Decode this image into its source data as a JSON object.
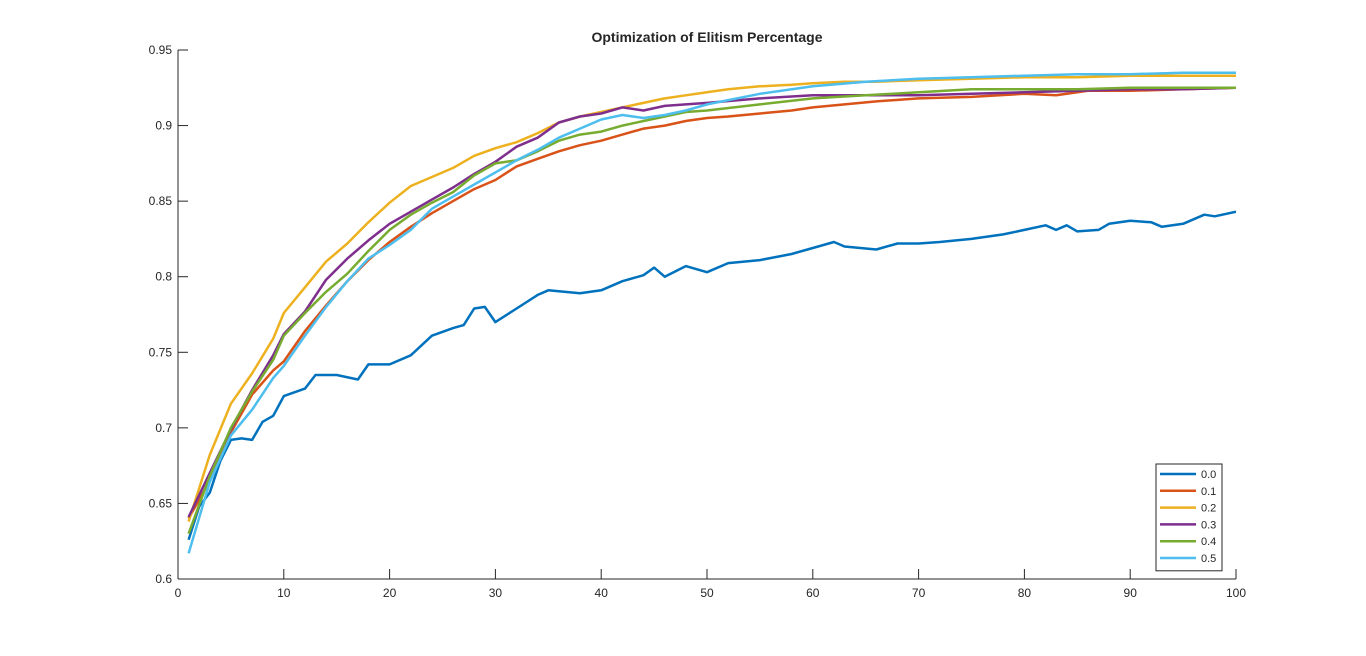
{
  "chart_data": {
    "type": "line",
    "title": "Optimization of Elitism Percentage",
    "xlabel": "",
    "ylabel": "",
    "xlim": [
      0,
      100
    ],
    "ylim": [
      0.6,
      0.95
    ],
    "xticks": [
      0,
      10,
      20,
      30,
      40,
      50,
      60,
      70,
      80,
      90,
      100
    ],
    "xtick_labels": [
      "0",
      "10",
      "20",
      "30",
      "40",
      "50",
      "60",
      "70",
      "80",
      "90",
      "100"
    ],
    "yticks": [
      0.6,
      0.65,
      0.7,
      0.75,
      0.8,
      0.85,
      0.9,
      0.95
    ],
    "ytick_labels": [
      "0.6",
      "0.65",
      "0.7",
      "0.75",
      "0.8",
      "0.85",
      "0.9",
      "0.95"
    ],
    "grid": false,
    "legend_position": "bottom-right",
    "series": [
      {
        "name": "0.0",
        "color": "#0072BD",
        "x": [
          1,
          2,
          3,
          4,
          5,
          6,
          7,
          8,
          9,
          10,
          12,
          13,
          15,
          17,
          18,
          20,
          22,
          24,
          26,
          27,
          28,
          29,
          30,
          32,
          34,
          35,
          38,
          40,
          42,
          44,
          45,
          46,
          48,
          50,
          52,
          55,
          58,
          60,
          62,
          63,
          66,
          68,
          70,
          72,
          75,
          78,
          80,
          82,
          83,
          84,
          85,
          87,
          88,
          90,
          92,
          93,
          95,
          97,
          98,
          100
        ],
        "y": [
          0.626,
          0.648,
          0.657,
          0.678,
          0.692,
          0.693,
          0.692,
          0.704,
          0.708,
          0.721,
          0.726,
          0.735,
          0.735,
          0.732,
          0.742,
          0.742,
          0.748,
          0.761,
          0.766,
          0.768,
          0.779,
          0.78,
          0.77,
          0.779,
          0.788,
          0.791,
          0.789,
          0.791,
          0.797,
          0.801,
          0.806,
          0.8,
          0.807,
          0.803,
          0.809,
          0.811,
          0.815,
          0.819,
          0.823,
          0.82,
          0.818,
          0.822,
          0.822,
          0.823,
          0.825,
          0.828,
          0.831,
          0.834,
          0.831,
          0.834,
          0.83,
          0.831,
          0.835,
          0.837,
          0.836,
          0.833,
          0.835,
          0.841,
          0.84,
          0.843
        ]
      },
      {
        "name": "0.1",
        "color": "#D95319",
        "x": [
          1,
          3,
          5,
          7,
          9,
          10,
          12,
          14,
          16,
          18,
          20,
          22,
          24,
          26,
          28,
          30,
          32,
          34,
          36,
          38,
          40,
          42,
          44,
          46,
          48,
          50,
          52,
          55,
          58,
          60,
          63,
          66,
          70,
          75,
          80,
          83,
          86,
          90,
          95,
          100
        ],
        "y": [
          0.64,
          0.665,
          0.697,
          0.722,
          0.738,
          0.744,
          0.764,
          0.781,
          0.797,
          0.811,
          0.823,
          0.833,
          0.842,
          0.85,
          0.858,
          0.864,
          0.873,
          0.878,
          0.883,
          0.887,
          0.89,
          0.894,
          0.898,
          0.9,
          0.903,
          0.905,
          0.906,
          0.908,
          0.91,
          0.912,
          0.914,
          0.916,
          0.918,
          0.919,
          0.921,
          0.92,
          0.923,
          0.923,
          0.924,
          0.925
        ]
      },
      {
        "name": "0.2",
        "color": "#EDB120",
        "x": [
          1,
          3,
          5,
          7,
          9,
          10,
          12,
          14,
          16,
          18,
          20,
          22,
          24,
          26,
          28,
          30,
          32,
          34,
          36,
          38,
          40,
          42,
          44,
          46,
          48,
          50,
          52,
          55,
          58,
          60,
          63,
          66,
          70,
          75,
          80,
          85,
          90,
          95,
          100
        ],
        "y": [
          0.638,
          0.682,
          0.716,
          0.736,
          0.759,
          0.776,
          0.793,
          0.81,
          0.822,
          0.836,
          0.849,
          0.86,
          0.866,
          0.872,
          0.88,
          0.885,
          0.889,
          0.895,
          0.902,
          0.906,
          0.909,
          0.912,
          0.915,
          0.918,
          0.92,
          0.922,
          0.924,
          0.926,
          0.927,
          0.928,
          0.929,
          0.929,
          0.93,
          0.931,
          0.932,
          0.932,
          0.933,
          0.933,
          0.933
        ]
      },
      {
        "name": "0.3",
        "color": "#7E2F8E",
        "x": [
          1,
          3,
          5,
          7,
          9,
          10,
          12,
          14,
          16,
          18,
          20,
          22,
          24,
          26,
          28,
          30,
          32,
          34,
          36,
          38,
          40,
          42,
          44,
          46,
          48,
          50,
          55,
          60,
          65,
          70,
          75,
          80,
          85,
          90,
          95,
          100
        ],
        "y": [
          0.641,
          0.67,
          0.699,
          0.725,
          0.748,
          0.762,
          0.777,
          0.798,
          0.812,
          0.824,
          0.835,
          0.843,
          0.851,
          0.859,
          0.868,
          0.876,
          0.886,
          0.892,
          0.902,
          0.906,
          0.908,
          0.912,
          0.91,
          0.913,
          0.914,
          0.915,
          0.918,
          0.92,
          0.92,
          0.92,
          0.921,
          0.922,
          0.923,
          0.924,
          0.924,
          0.925
        ]
      },
      {
        "name": "0.4",
        "color": "#77AC30",
        "x": [
          1,
          3,
          5,
          7,
          9,
          10,
          12,
          14,
          16,
          18,
          20,
          22,
          24,
          26,
          28,
          30,
          32,
          34,
          36,
          38,
          40,
          42,
          44,
          46,
          48,
          50,
          55,
          60,
          65,
          70,
          75,
          80,
          85,
          90,
          95,
          100
        ],
        "y": [
          0.63,
          0.668,
          0.7,
          0.724,
          0.745,
          0.761,
          0.776,
          0.79,
          0.802,
          0.817,
          0.831,
          0.841,
          0.849,
          0.856,
          0.867,
          0.875,
          0.877,
          0.883,
          0.89,
          0.894,
          0.896,
          0.9,
          0.903,
          0.906,
          0.909,
          0.91,
          0.914,
          0.918,
          0.92,
          0.922,
          0.924,
          0.924,
          0.924,
          0.925,
          0.925,
          0.925
        ]
      },
      {
        "name": "0.5",
        "color": "#4DBEEE",
        "x": [
          1,
          3,
          5,
          7,
          9,
          10,
          12,
          14,
          16,
          18,
          20,
          22,
          24,
          26,
          28,
          30,
          32,
          34,
          36,
          38,
          40,
          42,
          44,
          46,
          48,
          50,
          55,
          60,
          65,
          70,
          75,
          80,
          85,
          90,
          95,
          100
        ],
        "y": [
          0.617,
          0.664,
          0.695,
          0.712,
          0.733,
          0.741,
          0.761,
          0.78,
          0.797,
          0.812,
          0.821,
          0.831,
          0.845,
          0.853,
          0.861,
          0.869,
          0.877,
          0.884,
          0.892,
          0.898,
          0.904,
          0.907,
          0.905,
          0.907,
          0.91,
          0.914,
          0.921,
          0.926,
          0.929,
          0.931,
          0.932,
          0.933,
          0.934,
          0.934,
          0.935,
          0.935
        ]
      }
    ]
  }
}
